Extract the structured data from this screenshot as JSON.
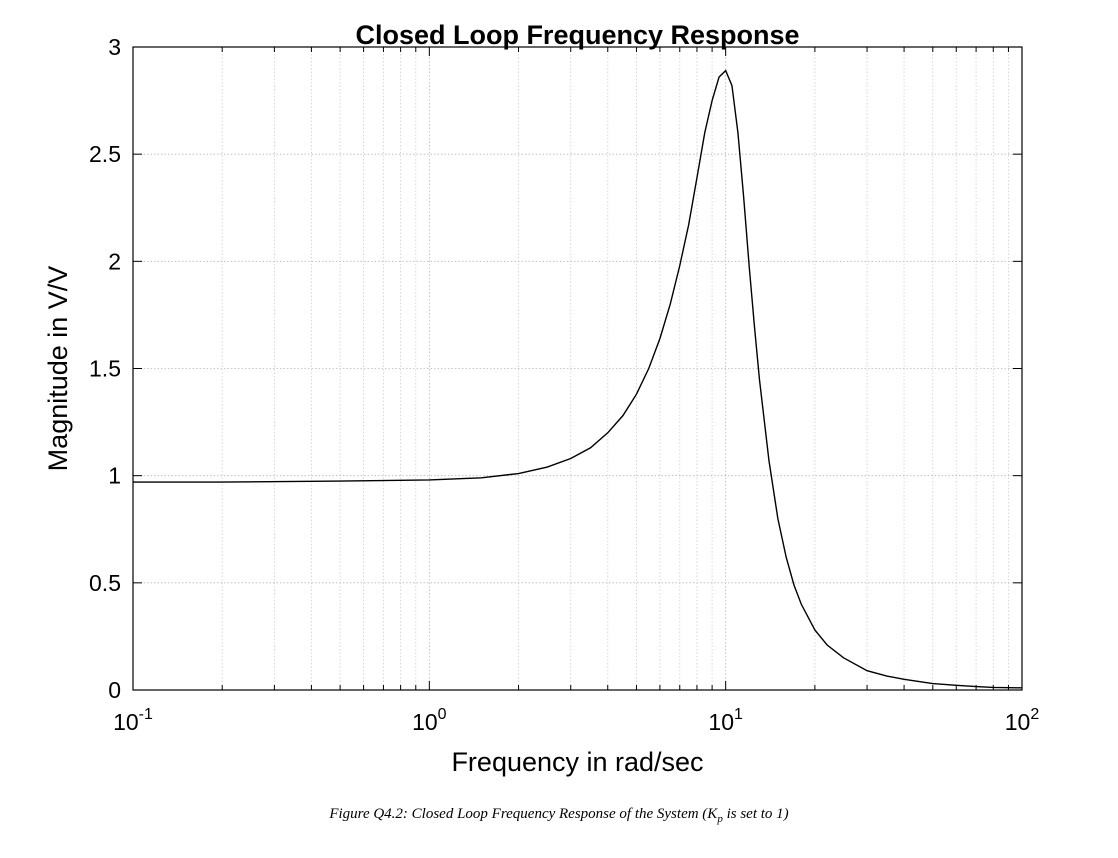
{
  "chart_data": {
    "type": "line",
    "title": "Closed Loop Frequency Response",
    "xlabel": "Frequency in rad/sec",
    "ylabel": "Magnitude in V/V",
    "xscale": "log",
    "xlim": [
      0.1,
      100
    ],
    "ylim": [
      0,
      3
    ],
    "grid": true,
    "x_ticks": [
      {
        "base": "10",
        "exp": "-1"
      },
      {
        "base": "10",
        "exp": "0"
      },
      {
        "base": "10",
        "exp": "1"
      },
      {
        "base": "10",
        "exp": "2"
      }
    ],
    "y_ticks": [
      "0",
      "0.5",
      "1",
      "1.5",
      "2",
      "2.5",
      "3"
    ],
    "series": [
      {
        "x": [
          0.1,
          0.2,
          0.5,
          1,
          1.5,
          2,
          2.5,
          3,
          3.5,
          4,
          4.5,
          5,
          5.5,
          6,
          6.5,
          7,
          7.5,
          8,
          8.5,
          9,
          9.5,
          10,
          10.5,
          11,
          11.5,
          12,
          12.5,
          13,
          14,
          15,
          16,
          17,
          18,
          20,
          22,
          25,
          30,
          35,
          40,
          50,
          60,
          70,
          80,
          100
        ],
        "y": [
          0.97,
          0.97,
          0.975,
          0.98,
          0.99,
          1.01,
          1.04,
          1.08,
          1.13,
          1.2,
          1.28,
          1.38,
          1.5,
          1.64,
          1.8,
          1.98,
          2.17,
          2.39,
          2.6,
          2.75,
          2.86,
          2.89,
          2.82,
          2.6,
          2.3,
          1.98,
          1.7,
          1.45,
          1.07,
          0.8,
          0.62,
          0.49,
          0.4,
          0.28,
          0.21,
          0.15,
          0.09,
          0.065,
          0.05,
          0.03,
          0.022,
          0.016,
          0.012,
          0.01
        ]
      }
    ]
  },
  "caption": {
    "prefix": "Figure Q4.2: Closed Loop Frequency Response of the System (K",
    "subscript": "p",
    "suffix": " is set to 1)"
  }
}
